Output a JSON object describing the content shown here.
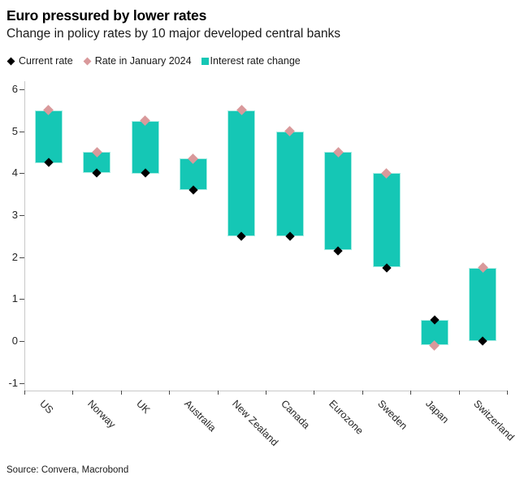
{
  "header": {
    "title": "Euro pressured by lower rates",
    "subtitle": "Change in policy rates by 10 major developed central banks"
  },
  "legend": {
    "items": [
      {
        "label": "Current rate",
        "marker": "black-diamond"
      },
      {
        "label": "Rate in January 2024",
        "marker": "pink-diamond"
      },
      {
        "label": "Interest rate change",
        "marker": "teal-square"
      }
    ]
  },
  "colors": {
    "bar": "#15C7B5",
    "bar_edge": "#A9EDE4",
    "current_marker": "#000000",
    "january_marker": "#D9999B",
    "axis_line": "#C9C9C9",
    "tick": "#4A4A4A"
  },
  "chart_data": {
    "type": "bar",
    "title": "Euro pressured by lower rates",
    "subtitle": "Change in policy rates by 10 major developed central banks",
    "categories": [
      "US",
      "Norway",
      "UK",
      "Australia",
      "New Zealand",
      "Canada",
      "Eurozone",
      "Sweden",
      "Japan",
      "Switzerland"
    ],
    "series": [
      {
        "name": "Current rate",
        "marker": "black-diamond",
        "values": [
          4.25,
          4.0,
          4.0,
          3.6,
          2.5,
          2.5,
          2.15,
          1.75,
          0.5,
          0.0
        ]
      },
      {
        "name": "Rate in January 2024",
        "marker": "pink-diamond",
        "values": [
          5.5,
          4.5,
          5.25,
          4.35,
          5.5,
          5.0,
          4.5,
          4.0,
          -0.1,
          1.75
        ]
      }
    ],
    "bars_note": "Interest rate change: each bar spans from the current rate to the January 2024 rate",
    "xlabel": "",
    "ylabel": "",
    "yticks": [
      6,
      5,
      4,
      3,
      2,
      1,
      0,
      -1
    ],
    "ylim": [
      -1.2,
      6.2
    ],
    "grid": false,
    "legend_position": "top-left"
  },
  "source": "Source: Convera, Macrobond"
}
